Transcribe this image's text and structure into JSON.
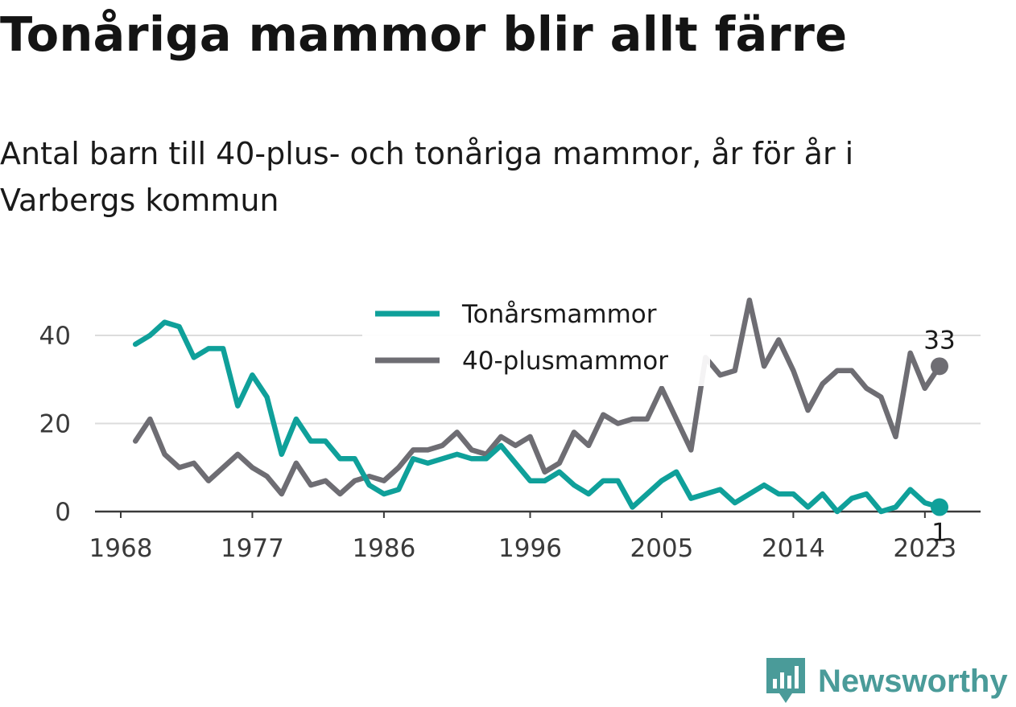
{
  "title": "Tonåriga mammor blir allt färre",
  "subtitle": "Antal barn till 40-plus- och tonåriga mammor, år för år i Varbergs kommun",
  "brand": {
    "name": "Newsworthy",
    "icon": "newsworthy-logo-icon",
    "color": "#4a9b99"
  },
  "chart_data": {
    "type": "line",
    "title": "Tonåriga mammor blir allt färre",
    "subtitle": "Antal barn till 40-plus- och tonåriga mammor, år för år i Varbergs kommun",
    "x": [
      1969,
      1970,
      1971,
      1972,
      1973,
      1974,
      1975,
      1976,
      1977,
      1978,
      1979,
      1980,
      1981,
      1982,
      1983,
      1984,
      1985,
      1986,
      1987,
      1988,
      1989,
      1990,
      1991,
      1992,
      1993,
      1994,
      1995,
      1996,
      1997,
      1998,
      1999,
      2000,
      2001,
      2002,
      2003,
      2004,
      2005,
      2006,
      2007,
      2008,
      2009,
      2010,
      2011,
      2012,
      2013,
      2014,
      2015,
      2016,
      2017,
      2018,
      2019,
      2020,
      2021,
      2022,
      2023,
      2024
    ],
    "x_ticks": [
      1968,
      1977,
      1986,
      1996,
      2005,
      2014,
      2023
    ],
    "y_ticks": [
      0,
      20,
      40
    ],
    "ylim": [
      0,
      50
    ],
    "grid": true,
    "legend_position": "top-center",
    "series": [
      {
        "name": "Tonårsmammor",
        "color": "#0fa09a",
        "end_label": "1",
        "values": [
          38,
          40,
          43,
          42,
          35,
          37,
          37,
          24,
          31,
          26,
          13,
          21,
          16,
          16,
          12,
          12,
          6,
          4,
          5,
          12,
          11,
          12,
          13,
          12,
          12,
          15,
          11,
          7,
          7,
          9,
          6,
          4,
          7,
          7,
          1,
          4,
          7,
          9,
          3,
          4,
          5,
          2,
          4,
          6,
          4,
          4,
          1,
          4,
          0,
          3,
          4,
          0,
          1,
          5,
          2,
          1
        ]
      },
      {
        "name": "40-plusmammor",
        "color": "#6e6d73",
        "end_label": "33",
        "values": [
          16,
          21,
          13,
          10,
          11,
          7,
          10,
          13,
          10,
          8,
          4,
          11,
          6,
          7,
          4,
          7,
          8,
          7,
          10,
          14,
          14,
          15,
          18,
          14,
          13,
          17,
          15,
          17,
          9,
          11,
          18,
          15,
          22,
          20,
          21,
          21,
          28,
          21,
          14,
          35,
          31,
          32,
          48,
          33,
          39,
          32,
          23,
          29,
          32,
          32,
          28,
          26,
          17,
          36,
          28,
          33
        ]
      }
    ]
  }
}
